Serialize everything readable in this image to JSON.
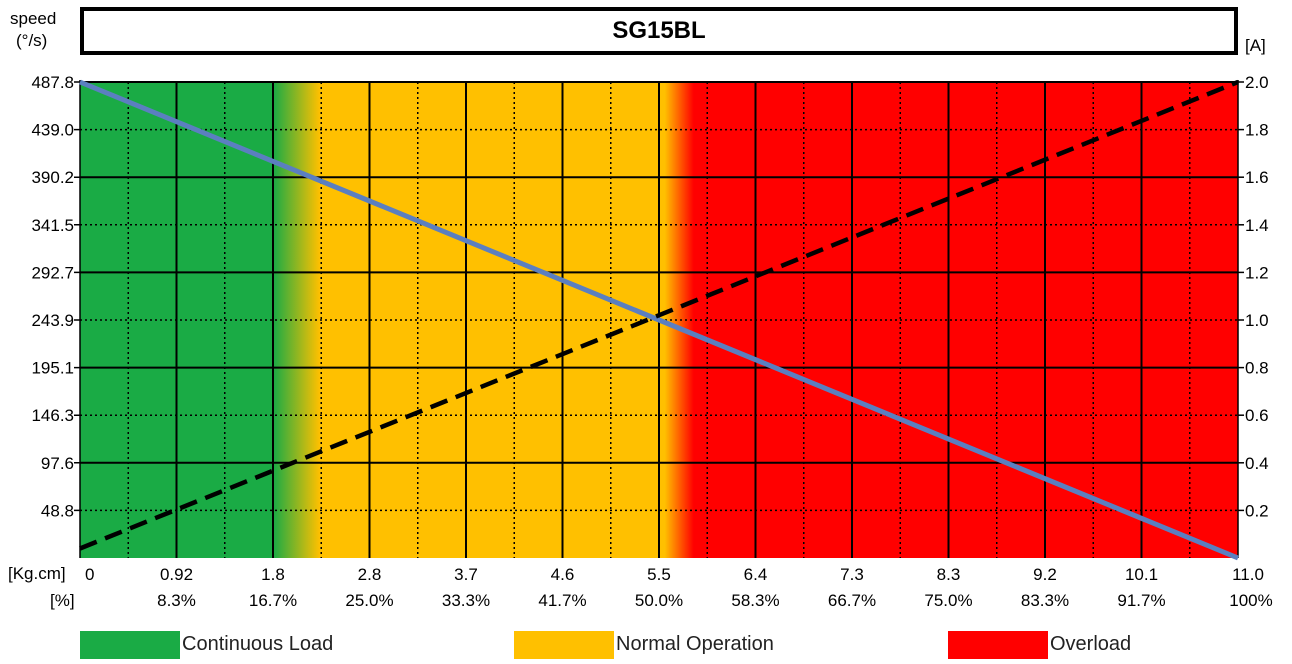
{
  "chart_data": {
    "type": "line",
    "title": "SG15BL",
    "y_left": {
      "label_line1": "speed",
      "label_line2": "(°/s)",
      "range": [
        0,
        487.8
      ],
      "ticks": [
        48.8,
        97.6,
        146.3,
        195.1,
        243.9,
        292.7,
        341.5,
        390.2,
        439.0,
        487.8
      ],
      "tick_labels": [
        "48.8",
        "97.6",
        "146.3",
        "195.1",
        "243.9",
        "292.7",
        "341.5",
        "390.2",
        "439.0",
        "487.8"
      ]
    },
    "y_right": {
      "label": "[A]",
      "range": [
        0,
        2.0
      ],
      "ticks": [
        0.2,
        0.4,
        0.6,
        0.8,
        1.0,
        1.2,
        1.4,
        1.6,
        1.8,
        2.0
      ],
      "tick_labels": [
        "0.2",
        "0.4",
        "0.6",
        "0.8",
        "1.0",
        "1.2",
        "1.4",
        "1.6",
        "1.8",
        "2.0"
      ]
    },
    "x": {
      "label_torque": "[Kg.cm]",
      "label_percent": "[%]",
      "range": [
        0,
        11.0
      ],
      "ticks": [
        0,
        0.92,
        1.8,
        2.8,
        3.7,
        4.6,
        5.5,
        6.4,
        7.3,
        8.3,
        9.2,
        10.1,
        11.0
      ],
      "tick_labels": [
        "0",
        "0.92",
        "1.8",
        "2.8",
        "3.7",
        "4.6",
        "5.5",
        "6.4",
        "7.3",
        "8.3",
        "9.2",
        "10.1",
        "11.0"
      ],
      "percent_labels": [
        "",
        "8.3%",
        "16.7%",
        "25.0%",
        "33.3%",
        "41.7%",
        "50.0%",
        "58.3%",
        "66.7%",
        "75.0%",
        "83.3%",
        "91.7%",
        "100%"
      ]
    },
    "series": [
      {
        "axis": "left",
        "style": "solid",
        "color": "#5b7fc0",
        "x": [
          0,
          11.0
        ],
        "y": [
          487.8,
          0
        ]
      },
      {
        "axis": "right",
        "style": "dashed",
        "color": "#000000",
        "x": [
          0,
          11.0
        ],
        "y": [
          0.04,
          2.0
        ]
      }
    ],
    "zones": [
      {
        "label": "Continuous Load",
        "color": "#1aab45",
        "x_end_fraction": 0.167
      },
      {
        "label": "Normal Operation",
        "color": "#ffc000",
        "x_end_fraction": 0.5
      },
      {
        "label": "Overload",
        "color": "#ff0000",
        "x_end_fraction": 1.0
      }
    ],
    "grid": true,
    "legend_position": "bottom"
  }
}
